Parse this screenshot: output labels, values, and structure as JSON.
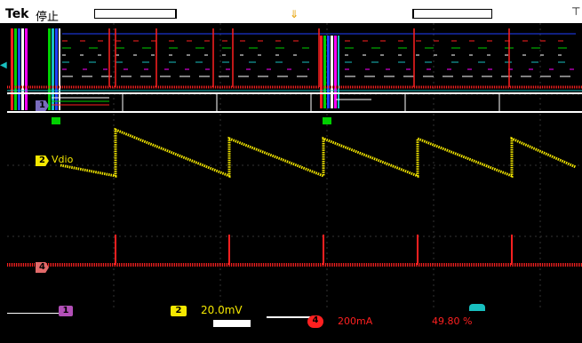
{
  "header": {
    "brand": "Tek",
    "acq_state": "停止"
  },
  "channels": {
    "ch1": {
      "number": "1",
      "color": "#7a6cbe"
    },
    "ch2": {
      "number": "2",
      "color": "#f5e800",
      "label": "Vdio"
    },
    "ch4": {
      "number": "4",
      "color": "#e26a6a"
    }
  },
  "bottom": {
    "ch1_badge": "1",
    "ch2_badge": "2",
    "ch2_scale": "20.0mV",
    "ch4_badge": "4",
    "ch4_scale": "200mA",
    "trigger_readout": "49.80 %"
  },
  "colors": {
    "red_bus": "#ff2020",
    "ch2_wave": "#f5e800",
    "cyan": "#18c0c0",
    "purple": "#b24fb7"
  }
}
